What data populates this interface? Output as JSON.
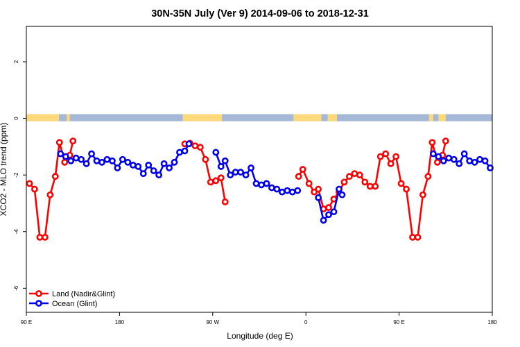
{
  "chart_data": {
    "type": "line",
    "title": "30N-35N July (Ver 9)   2014-09-06 to 2018-12-31",
    "xlabel": "Longitude (deg E)",
    "ylabel": "XCO2 - MLO trend (ppm)",
    "xlim": [
      90,
      540
    ],
    "ylim": [
      -6.85,
      3.25
    ],
    "x_ticks": [
      {
        "value": 90,
        "label": "90 E"
      },
      {
        "value": 180,
        "label": "180"
      },
      {
        "value": 270,
        "label": "90 W"
      },
      {
        "value": 360,
        "label": "0"
      },
      {
        "value": 450,
        "label": "90 E"
      },
      {
        "value": 540,
        "label": "180"
      }
    ],
    "y_ticks": [
      {
        "value": 2,
        "label": "2"
      },
      {
        "value": 0,
        "label": "0"
      },
      {
        "value": -2,
        "label": "-2"
      },
      {
        "value": -4,
        "label": "-4"
      },
      {
        "value": -6,
        "label": "-6"
      }
    ],
    "legend": {
      "position": "bottom-left"
    },
    "land_sea_band": {
      "y": [
        -0.1,
        0.15
      ],
      "ocean_color": "#a6b8d8",
      "land_color": "#fcd97a",
      "land_ranges": [
        [
          90,
          121.5
        ],
        [
          129,
          132
        ],
        [
          241,
          279
        ],
        [
          348,
          375
        ],
        [
          381,
          390
        ],
        [
          479,
          483
        ],
        [
          488,
          495
        ]
      ]
    },
    "series": [
      {
        "name": "Land (Nadir&Glint)",
        "color": "#ff0000",
        "segments": [
          [
            [
              93,
              -2.3
            ],
            [
              98,
              -2.5
            ],
            [
              103,
              -4.2
            ],
            [
              108,
              -4.2
            ],
            [
              113,
              -2.7
            ],
            [
              118,
              -2.05
            ],
            [
              122,
              -0.85
            ],
            [
              127,
              -1.55
            ],
            [
              132,
              -1.3
            ],
            [
              135,
              -0.8
            ]
          ],
          [
            [
              243,
              -0.9
            ],
            [
              248,
              -0.88
            ],
            [
              253,
              -0.97
            ],
            [
              258,
              -1.02
            ],
            [
              263,
              -1.45
            ],
            [
              268,
              -2.25
            ],
            [
              273,
              -2.2
            ],
            [
              278,
              -2.1
            ],
            [
              282,
              -2.95
            ]
          ],
          [
            [
              353,
              -2.05
            ],
            [
              357,
              -1.8
            ],
            [
              363,
              -2.3
            ],
            [
              368,
              -2.6
            ],
            [
              372,
              -2.5
            ],
            [
              377,
              -3.2
            ],
            [
              382,
              -3.15
            ],
            [
              387,
              -2.85
            ],
            [
              392,
              -2.6
            ],
            [
              397,
              -2.25
            ],
            [
              402,
              -2.05
            ],
            [
              407,
              -1.95
            ],
            [
              412,
              -2.0
            ],
            [
              417,
              -2.25
            ],
            [
              422,
              -2.4
            ],
            [
              427,
              -2.4
            ],
            [
              432,
              -1.35
            ],
            [
              437,
              -1.25
            ],
            [
              442,
              -1.6
            ],
            [
              447,
              -1.35
            ],
            [
              452,
              -2.3
            ],
            [
              457,
              -2.5
            ],
            [
              463,
              -4.2
            ],
            [
              468,
              -4.2
            ],
            [
              473,
              -2.7
            ],
            [
              478,
              -2.05
            ],
            [
              482,
              -0.85
            ],
            [
              487,
              -1.55
            ],
            [
              492,
              -1.3
            ],
            [
              495,
              -0.8
            ]
          ]
        ]
      },
      {
        "name": "Ocean (Glint)",
        "color": "#0000ee",
        "segments": [
          [
            [
              123,
              -1.25
            ],
            [
              128,
              -1.35
            ],
            [
              133,
              -1.5
            ],
            [
              138,
              -1.4
            ],
            [
              143,
              -1.45
            ],
            [
              148,
              -1.6
            ],
            [
              153,
              -1.25
            ],
            [
              158,
              -1.5
            ],
            [
              163,
              -1.55
            ],
            [
              168,
              -1.45
            ],
            [
              173,
              -1.5
            ],
            [
              178,
              -1.75
            ],
            [
              183,
              -1.45
            ],
            [
              188,
              -1.55
            ],
            [
              193,
              -1.65
            ],
            [
              198,
              -1.7
            ],
            [
              203,
              -1.95
            ],
            [
              208,
              -1.65
            ],
            [
              213,
              -1.85
            ],
            [
              218,
              -2.0
            ],
            [
              223,
              -1.6
            ],
            [
              228,
              -1.75
            ],
            [
              233,
              -1.55
            ],
            [
              238,
              -1.2
            ],
            [
              243,
              -1.15
            ],
            [
              247,
              -0.9
            ]
          ],
          [
            [
              273,
              -1.2
            ],
            [
              278,
              -1.7
            ],
            [
              282,
              -1.5
            ],
            [
              287,
              -2.0
            ],
            [
              292,
              -1.9
            ],
            [
              297,
              -1.9
            ],
            [
              302,
              -2.0
            ],
            [
              307,
              -1.75
            ],
            [
              312,
              -2.3
            ],
            [
              317,
              -2.35
            ],
            [
              322,
              -2.3
            ],
            [
              327,
              -2.45
            ],
            [
              332,
              -2.5
            ],
            [
              337,
              -2.6
            ],
            [
              342,
              -2.55
            ],
            [
              347,
              -2.6
            ],
            [
              352,
              -2.55
            ]
          ],
          [
            [
              372,
              -2.8
            ],
            [
              377,
              -3.6
            ],
            [
              382,
              -3.4
            ],
            [
              387,
              -3.3
            ],
            [
              392,
              -2.5
            ],
            [
              395,
              -2.7
            ]
          ],
          [
            [
              483,
              -1.25
            ],
            [
              488,
              -1.35
            ],
            [
              493,
              -1.5
            ],
            [
              498,
              -1.4
            ],
            [
              503,
              -1.45
            ],
            [
              508,
              -1.6
            ],
            [
              513,
              -1.25
            ],
            [
              518,
              -1.5
            ],
            [
              523,
              -1.55
            ],
            [
              528,
              -1.45
            ],
            [
              533,
              -1.5
            ],
            [
              538,
              -1.75
            ]
          ]
        ]
      }
    ]
  }
}
